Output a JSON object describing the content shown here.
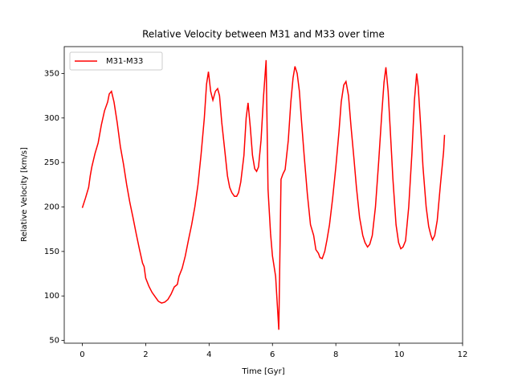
{
  "chart_data": {
    "type": "line",
    "title": "Relative Velocity between M31 and M33 over time",
    "x_label": "Time [Gyr]",
    "y_label": "Relative Velocity [km/s]",
    "x": [
      0,
      0.1,
      0.2,
      0.25,
      0.3,
      0.4,
      0.5,
      0.6,
      0.7,
      0.8,
      0.85,
      0.92,
      1.0,
      1.1,
      1.2,
      1.3,
      1.4,
      1.5,
      1.6,
      1.7,
      1.8,
      1.9,
      1.95,
      2.0,
      2.1,
      2.2,
      2.3,
      2.4,
      2.5,
      2.6,
      2.7,
      2.8,
      2.9,
      3.0,
      3.05,
      3.15,
      3.25,
      3.35,
      3.45,
      3.55,
      3.65,
      3.75,
      3.85,
      3.92,
      3.98,
      4.05,
      4.12,
      4.2,
      4.27,
      4.33,
      4.4,
      4.5,
      4.58,
      4.65,
      4.72,
      4.8,
      4.87,
      4.93,
      5.0,
      5.1,
      5.17,
      5.23,
      5.3,
      5.37,
      5.44,
      5.5,
      5.56,
      5.64,
      5.72,
      5.8,
      5.86,
      5.94,
      6.0,
      6.1,
      6.2,
      6.27,
      6.33,
      6.4,
      6.5,
      6.58,
      6.65,
      6.71,
      6.78,
      6.85,
      6.92,
      7.0,
      7.1,
      7.2,
      7.3,
      7.37,
      7.45,
      7.5,
      7.57,
      7.65,
      7.72,
      7.8,
      7.9,
      8.0,
      8.1,
      8.17,
      8.25,
      8.32,
      8.4,
      8.48,
      8.57,
      8.65,
      8.75,
      8.85,
      8.92,
      9.0,
      9.07,
      9.15,
      9.25,
      9.35,
      9.45,
      9.52,
      9.58,
      9.65,
      9.72,
      9.8,
      9.9,
      9.98,
      10.05,
      10.12,
      10.2,
      10.3,
      10.4,
      10.48,
      10.55,
      10.6,
      10.67,
      10.75,
      10.85,
      10.93,
      11.0,
      11.05,
      11.12,
      11.2,
      11.3,
      11.4,
      11.43
    ],
    "series": [
      {
        "name": "M31-M33",
        "color": "#ff0000",
        "values": [
          199,
          210,
          222,
          235,
          245,
          260,
          272,
          292,
          308,
          318,
          327,
          330,
          318,
          295,
          268,
          248,
          225,
          205,
          188,
          170,
          153,
          137,
          133,
          120,
          111,
          104,
          99,
          94,
          92,
          93,
          96,
          102,
          110,
          113,
          122,
          131,
          145,
          163,
          180,
          200,
          225,
          260,
          300,
          338,
          352,
          330,
          320,
          330,
          333,
          325,
          295,
          262,
          235,
          222,
          216,
          212,
          212,
          216,
          228,
          258,
          300,
          317,
          290,
          258,
          243,
          240,
          245,
          275,
          325,
          365,
          220,
          170,
          145,
          122,
          62,
          231,
          237,
          242,
          275,
          318,
          345,
          358,
          350,
          330,
          295,
          258,
          215,
          180,
          168,
          152,
          148,
          143,
          142,
          150,
          163,
          180,
          210,
          245,
          285,
          318,
          337,
          341,
          325,
          290,
          255,
          222,
          188,
          168,
          160,
          155,
          158,
          168,
          200,
          250,
          305,
          340,
          357,
          330,
          285,
          232,
          180,
          160,
          153,
          155,
          162,
          200,
          260,
          320,
          350,
          335,
          295,
          245,
          200,
          178,
          168,
          163,
          168,
          185,
          225,
          262,
          281
        ]
      }
    ],
    "xlim": [
      -0.57,
      12.0
    ],
    "ylim": [
      46.9,
      380.2
    ],
    "xticks": [
      0,
      2,
      4,
      6,
      8,
      10,
      12
    ],
    "yticks": [
      50,
      100,
      150,
      200,
      250,
      300,
      350
    ],
    "legend": "upper left"
  }
}
